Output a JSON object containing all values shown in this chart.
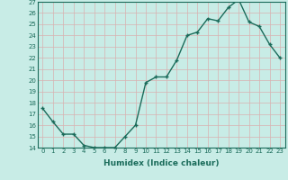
{
  "x": [
    0,
    1,
    2,
    3,
    4,
    5,
    6,
    7,
    8,
    9,
    10,
    11,
    12,
    13,
    14,
    15,
    16,
    17,
    18,
    19,
    20,
    21,
    22,
    23
  ],
  "y": [
    17.5,
    16.3,
    15.2,
    15.2,
    14.2,
    14.0,
    14.0,
    14.0,
    15.0,
    16.0,
    19.8,
    20.3,
    20.3,
    21.8,
    24.0,
    24.3,
    25.5,
    25.3,
    26.5,
    27.2,
    25.2,
    24.8,
    23.2,
    22.0
  ],
  "line_color": "#1a6b5a",
  "marker": "+",
  "marker_size": 3.5,
  "linewidth": 1.0,
  "background_color": "#c8ece6",
  "grid_color": "#a0cdc6",
  "xlabel": "Humidex (Indice chaleur)",
  "ylim": [
    14,
    27
  ],
  "xlim": [
    -0.5,
    23.5
  ],
  "yticks": [
    14,
    15,
    16,
    17,
    18,
    19,
    20,
    21,
    22,
    23,
    24,
    25,
    26,
    27
  ],
  "xticks": [
    0,
    1,
    2,
    3,
    4,
    5,
    6,
    7,
    8,
    9,
    10,
    11,
    12,
    13,
    14,
    15,
    16,
    17,
    18,
    19,
    20,
    21,
    22,
    23
  ],
  "tick_fontsize": 5.0,
  "xlabel_fontsize": 6.5,
  "xlabel_bold": true
}
